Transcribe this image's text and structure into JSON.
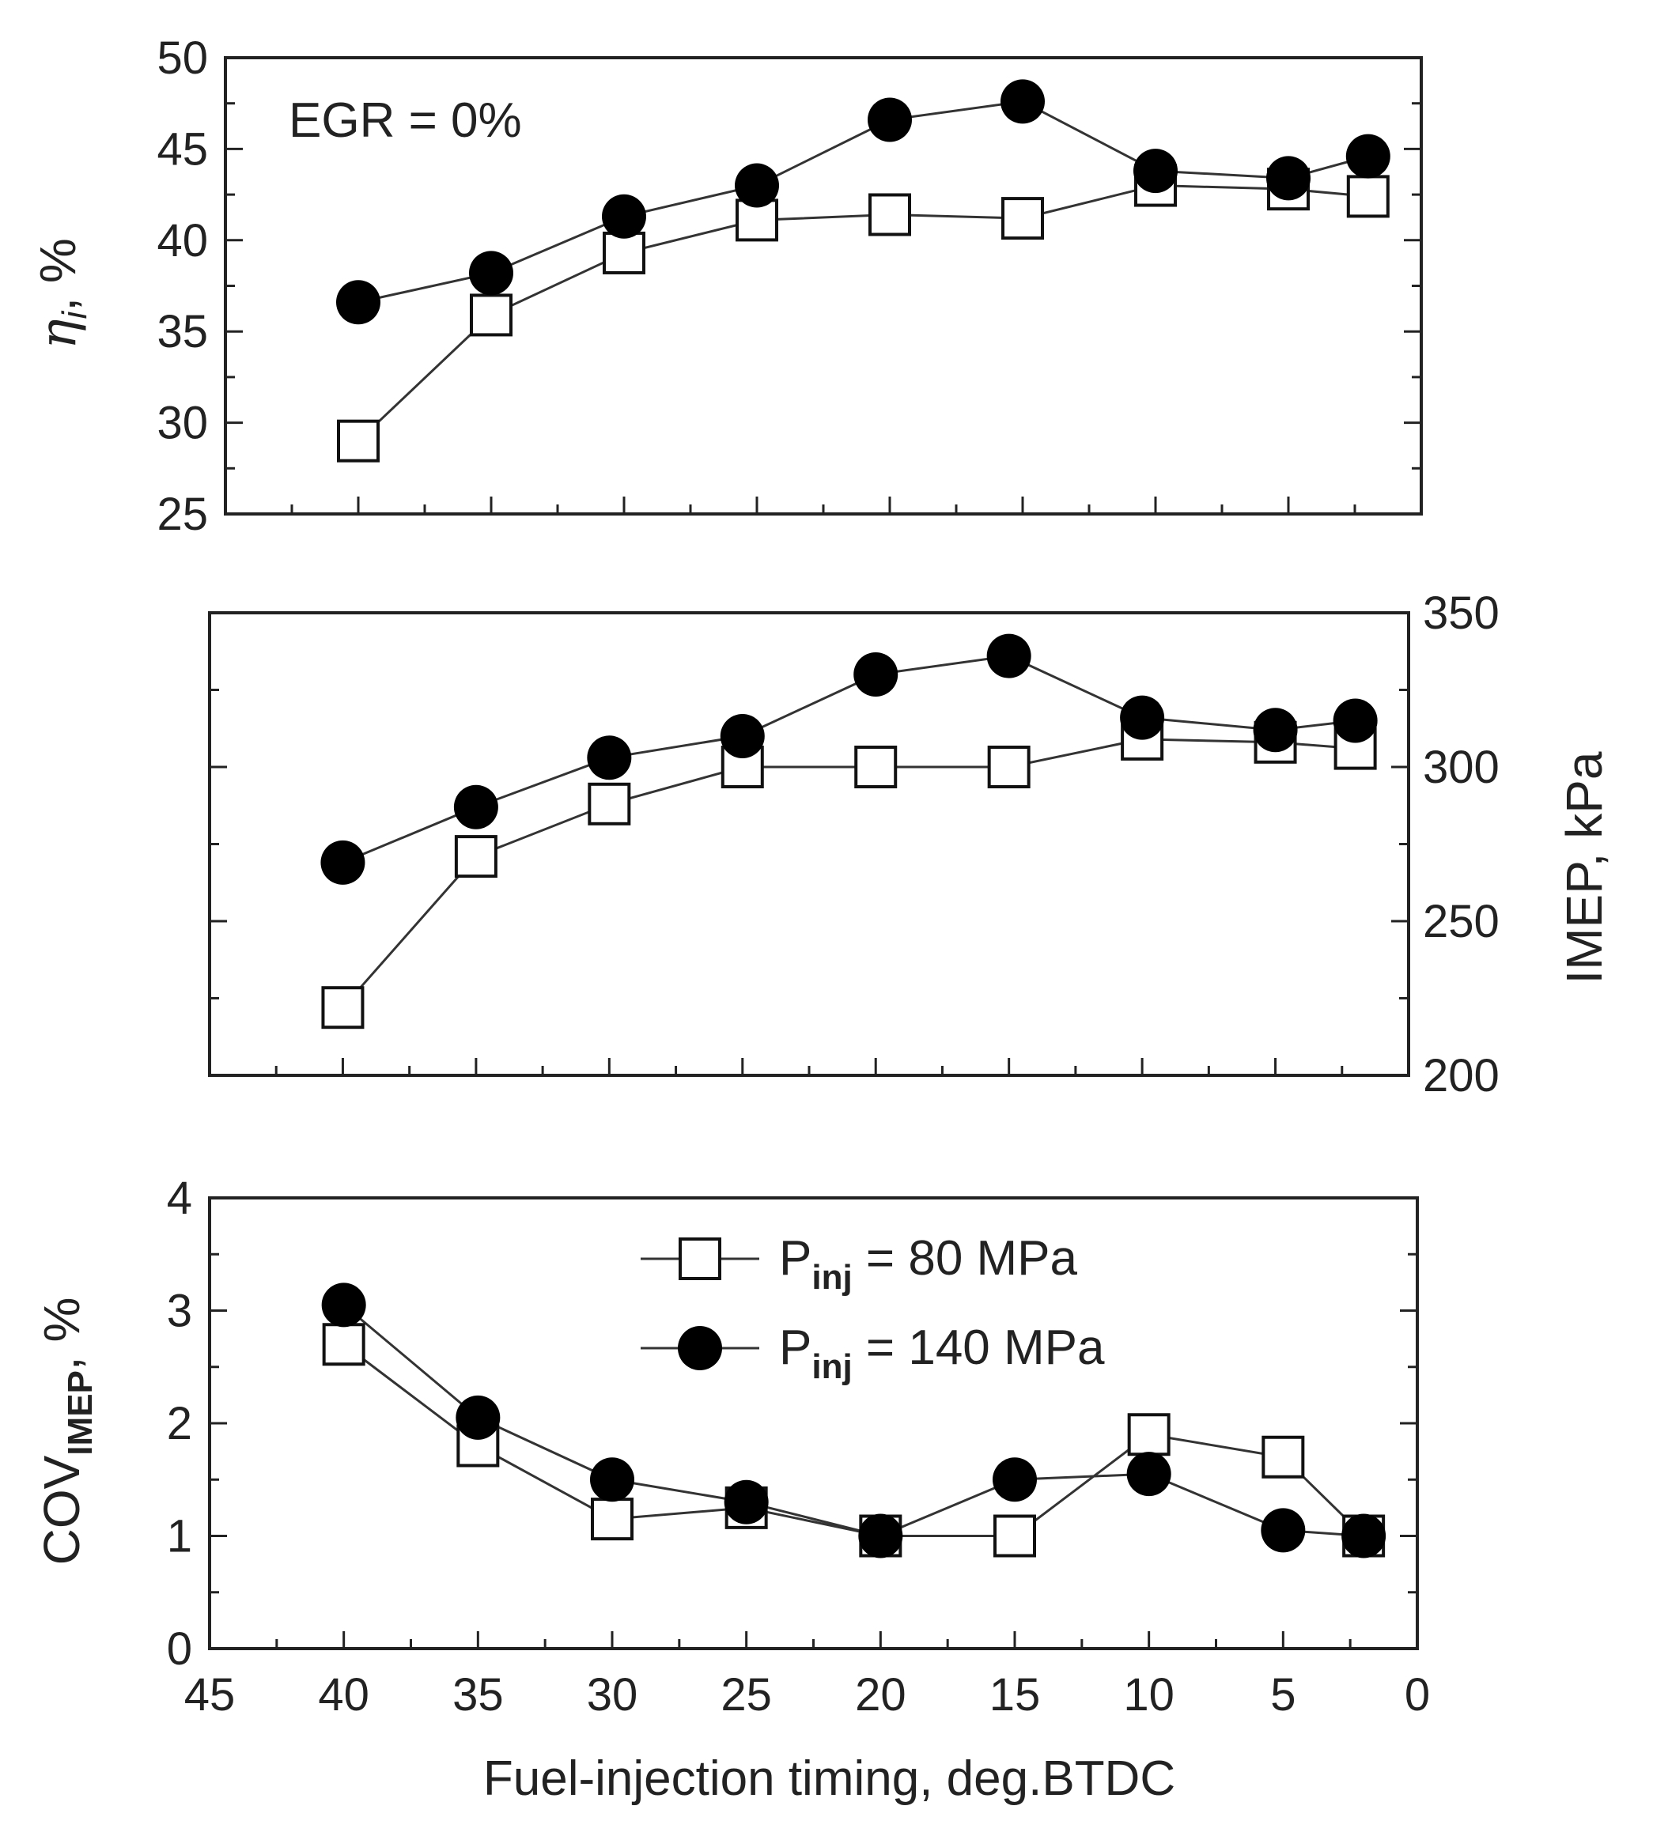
{
  "chart_data": [
    {
      "type": "line",
      "panel": "top",
      "annotation": "EGR = 0%",
      "ylabel": {
        "symbol": "η",
        "subscript": "i",
        "unit": ", %"
      },
      "xlim": [
        45,
        0
      ],
      "ylim": [
        25,
        50
      ],
      "yticks": [
        "25",
        "30",
        "35",
        "40",
        "45",
        "50"
      ],
      "series": [
        {
          "name": "P_inj = 80 MPa",
          "marker": "open-square",
          "x": [
            40,
            35,
            30,
            25,
            20,
            15,
            10,
            5,
            2
          ],
          "values": [
            29.0,
            35.9,
            39.3,
            41.1,
            41.4,
            41.2,
            43.0,
            42.8,
            42.4
          ]
        },
        {
          "name": "P_inj = 140 MPa",
          "marker": "filled-circle",
          "x": [
            40,
            35,
            30,
            25,
            20,
            15,
            10,
            5,
            2
          ],
          "values": [
            36.6,
            38.2,
            41.3,
            43.0,
            46.6,
            47.6,
            43.8,
            43.4,
            44.6
          ]
        }
      ]
    },
    {
      "type": "line",
      "panel": "middle",
      "ylabel": "IMEP, kPa",
      "ylabel_side": "right",
      "xlim": [
        45,
        0
      ],
      "ylim": [
        200,
        350
      ],
      "yticks": [
        "200",
        "250",
        "300",
        "350"
      ],
      "series": [
        {
          "name": "P_inj = 80 MPa",
          "marker": "open-square",
          "x": [
            40,
            35,
            30,
            25,
            20,
            15,
            10,
            5,
            2
          ],
          "values": [
            222,
            271,
            288,
            300,
            300,
            300,
            309,
            308,
            306
          ]
        },
        {
          "name": "P_inj = 140 MPa",
          "marker": "filled-circle",
          "x": [
            40,
            35,
            30,
            25,
            20,
            15,
            10,
            5,
            2
          ],
          "values": [
            269,
            287,
            303,
            310,
            330,
            336,
            316,
            312,
            315
          ]
        }
      ]
    },
    {
      "type": "line",
      "panel": "bottom",
      "ylabel": {
        "symbol": "COV",
        "subscript": "IMEP",
        "unit": ", %"
      },
      "xlabel": "Fuel-injection timing, deg.BTDC",
      "xlim": [
        45,
        0
      ],
      "ylim": [
        0,
        4
      ],
      "xticks": [
        "45",
        "40",
        "35",
        "30",
        "25",
        "20",
        "15",
        "10",
        "5",
        "0"
      ],
      "yticks": [
        "0",
        "1",
        "2",
        "3",
        "4"
      ],
      "legend": [
        {
          "base": "P",
          "sub": "inj",
          "rest": " = 80 MPa",
          "marker": "open-square"
        },
        {
          "base": "P",
          "sub": "inj",
          "rest": " = 140 MPa",
          "marker": "filled-circle"
        }
      ],
      "series": [
        {
          "name": "P_inj = 80 MPa",
          "marker": "open-square",
          "x": [
            40,
            35,
            30,
            25,
            20,
            15,
            10,
            5,
            2
          ],
          "values": [
            2.7,
            1.8,
            1.15,
            1.25,
            1.0,
            1.0,
            1.9,
            1.7,
            1.0
          ]
        },
        {
          "name": "P_inj = 140 MPa",
          "marker": "filled-circle",
          "x": [
            40,
            35,
            30,
            25,
            20,
            15,
            10,
            5,
            2
          ],
          "values": [
            3.05,
            2.05,
            1.5,
            1.3,
            1.0,
            1.5,
            1.55,
            1.05,
            1.0
          ]
        }
      ]
    }
  ]
}
